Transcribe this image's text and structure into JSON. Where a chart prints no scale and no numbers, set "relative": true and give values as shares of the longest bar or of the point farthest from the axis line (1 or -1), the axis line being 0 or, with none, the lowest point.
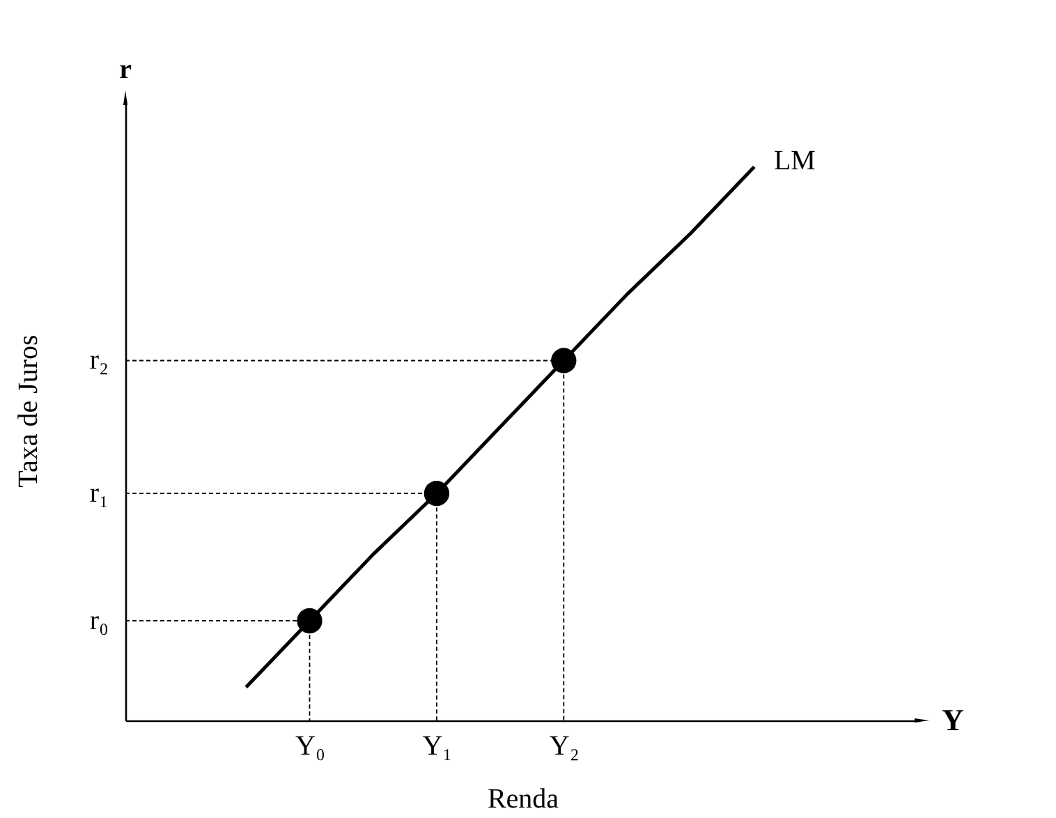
{
  "chart_data": {
    "type": "line",
    "relative": true,
    "xlabel": "Renda",
    "ylabel": "Taxa de Juros",
    "categories": [
      null,
      null,
      "Y₀",
      null,
      "Y₁",
      null,
      "Y₂",
      null,
      null,
      null
    ],
    "tick_labels": "x",
    "grid": false,
    "series": [
      {
        "name": "LM",
        "color": "#000000",
        "line_style": "solid",
        "values": [
          null,
          0.06,
          0.18,
          0.3,
          0.41,
          0.53,
          0.65,
          0.77,
          0.88,
          1
        ]
      },
      {
        "type": "scatter",
        "color": "#000000",
        "marker": "circle",
        "values": [
          null,
          null,
          0.18,
          null,
          0.41,
          null,
          0.65,
          null,
          null,
          null
        ]
      }
    ],
    "annotations": [
      "r",
      "Y",
      "r₀",
      "r₁",
      "r₂"
    ]
  }
}
